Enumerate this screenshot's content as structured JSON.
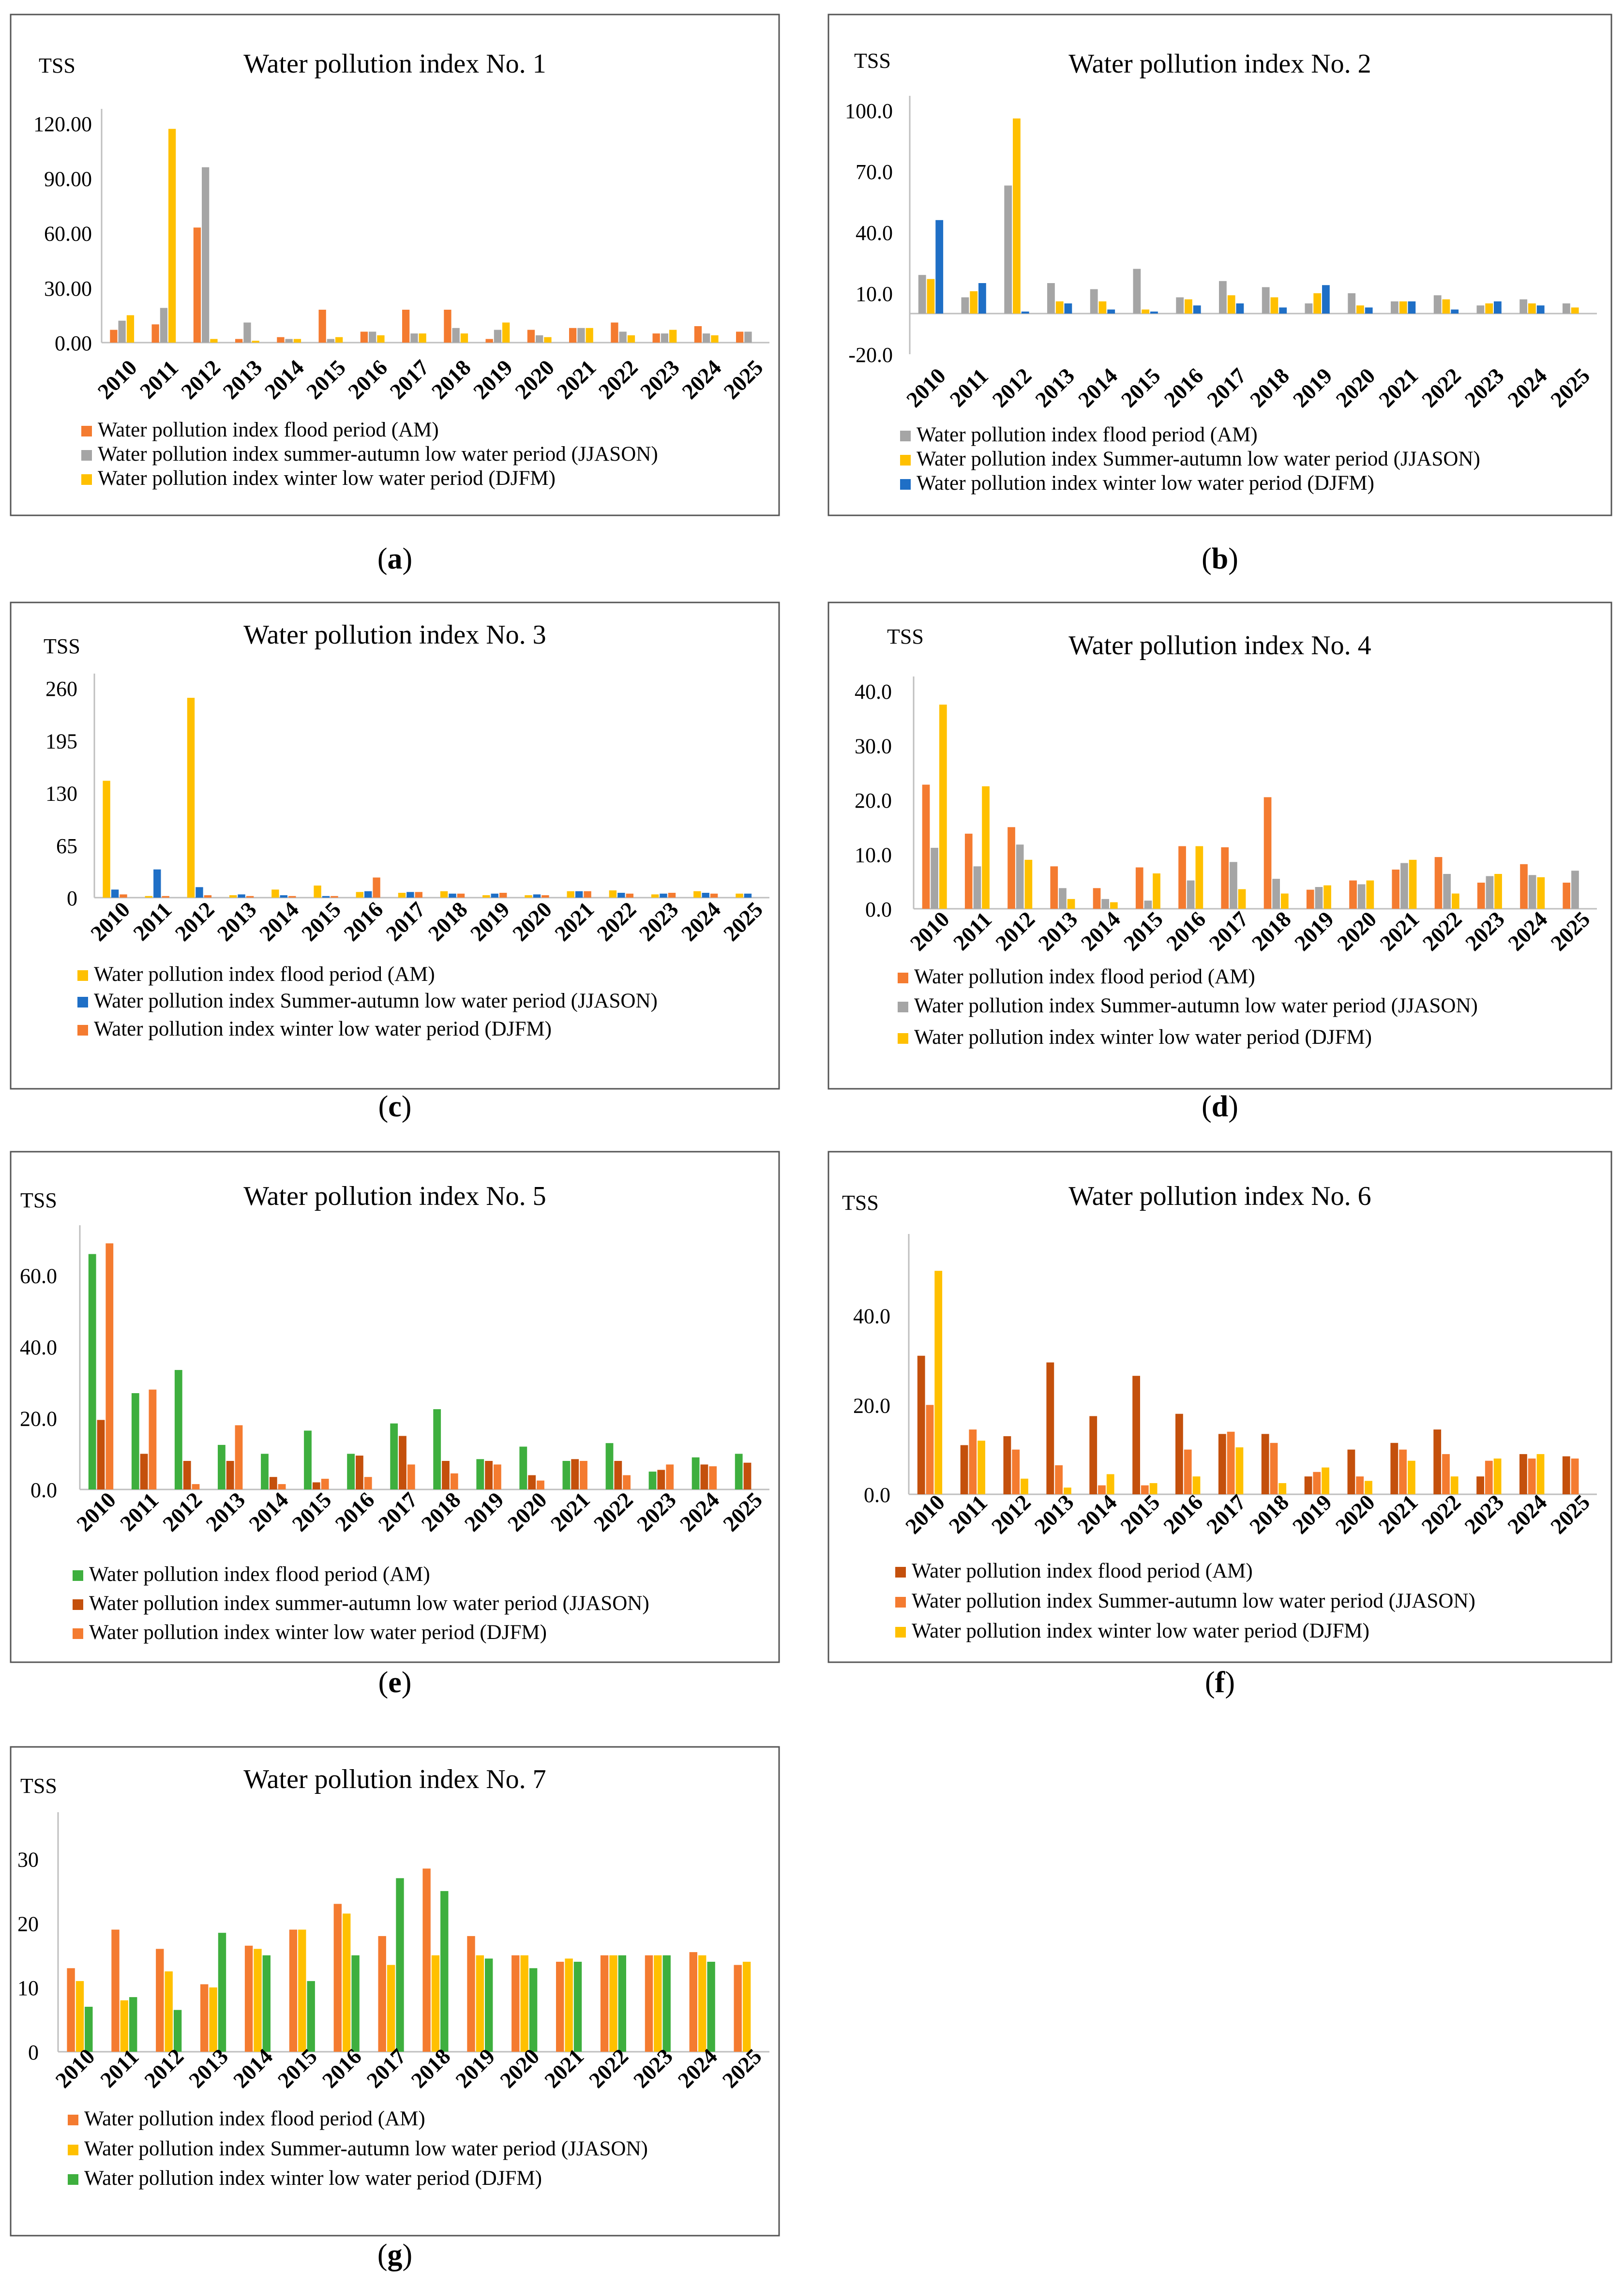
{
  "colors": {
    "orange": "#F47B30",
    "gray": "#A5A5A5",
    "yellow": "#FFC000",
    "blue": "#1F6FC6",
    "green": "#3EAF3E",
    "darkorange": "#C4500C"
  },
  "chart_data": [
    {
      "label": "(a)",
      "type": "bar",
      "title": "Water pollution index No. 1",
      "ylabel": "TSS",
      "ylim": [
        0,
        120
      ],
      "yticks": [
        "0.00",
        "30.00",
        "60.00",
        "90.00",
        "120.00"
      ],
      "categories": [
        "2010",
        "2011",
        "2012",
        "2013",
        "2014",
        "2015",
        "2016",
        "2017",
        "2018",
        "2019",
        "2020",
        "2021",
        "2022",
        "2023",
        "2024",
        "2025"
      ],
      "series": [
        {
          "name": "Water pollution index flood period (AM)",
          "color": "orange",
          "values": [
            7,
            10,
            63,
            2,
            3,
            18,
            6,
            18,
            18,
            2,
            7,
            8,
            11,
            5,
            9,
            6
          ]
        },
        {
          "name": "Water pollution index summer-autumn low water period (JJASON)",
          "color": "gray",
          "values": [
            12,
            19,
            96,
            11,
            2,
            2,
            6,
            5,
            8,
            7,
            4,
            8,
            6,
            5,
            5,
            6
          ]
        },
        {
          "name": "Water pollution index winter low water period (DJFM)",
          "color": "yellow",
          "values": [
            15,
            117,
            2,
            1,
            2,
            3,
            4,
            5,
            5,
            11,
            3,
            8,
            4,
            7,
            4,
            0
          ]
        }
      ]
    },
    {
      "label": "(b)",
      "type": "bar",
      "title": "Water pollution index No. 2",
      "ylabel": "TSS",
      "ylim": [
        -20,
        100
      ],
      "yticks": [
        "-20.0",
        "10.0",
        "40.0",
        "70.0",
        "100.0"
      ],
      "categories": [
        "2010",
        "2011",
        "2012",
        "2013",
        "2014",
        "2015",
        "2016",
        "2017",
        "2018",
        "2019",
        "2020",
        "2021",
        "2022",
        "2023",
        "2024",
        "2025"
      ],
      "series": [
        {
          "name": "Water pollution index flood period (AM)",
          "color": "gray",
          "values": [
            19,
            8,
            63,
            15,
            12,
            22,
            8,
            16,
            13,
            5,
            10,
            6,
            9,
            4,
            7,
            5
          ]
        },
        {
          "name": "Water pollution index Summer-autumn low water period (JJASON)",
          "color": "yellow",
          "values": [
            17,
            11,
            96,
            6,
            6,
            2,
            7,
            9,
            8,
            10,
            4,
            6,
            7,
            5,
            5,
            3
          ]
        },
        {
          "name": "Water pollution index winter low water period (DJFM)",
          "color": "blue",
          "values": [
            46,
            15,
            1,
            5,
            2,
            1,
            4,
            5,
            3,
            14,
            3,
            6,
            2,
            6,
            4,
            0
          ]
        }
      ]
    },
    {
      "label": "(c)",
      "type": "bar",
      "title": "Water pollution index No. 3",
      "ylabel": "TSS",
      "ylim": [
        0,
        260
      ],
      "yticks": [
        "0",
        "65",
        "130",
        "195",
        "260"
      ],
      "categories": [
        "2010",
        "2011",
        "2012",
        "2013",
        "2014",
        "2015",
        "2016",
        "2017",
        "2018",
        "2019",
        "2020",
        "2021",
        "2022",
        "2023",
        "2024",
        "2025"
      ],
      "series": [
        {
          "name": "Water pollution index flood period (AM)",
          "color": "yellow",
          "values": [
            145,
            2,
            248,
            3,
            10,
            15,
            7,
            6,
            8,
            3,
            3,
            8,
            9,
            4,
            8,
            5
          ]
        },
        {
          "name": "Water pollution index Summer-autumn low water period (JJASON)",
          "color": "blue",
          "values": [
            10,
            35,
            13,
            4,
            3,
            2,
            8,
            7,
            5,
            5,
            4,
            8,
            6,
            5,
            6,
            5
          ]
        },
        {
          "name": "Water pollution index winter low water period (DJFM)",
          "color": "orange",
          "values": [
            4,
            2,
            3,
            2,
            2,
            2,
            25,
            7,
            5,
            6,
            3,
            8,
            5,
            6,
            5,
            0
          ]
        }
      ]
    },
    {
      "label": "(d)",
      "type": "bar",
      "title": "Water pollution index No. 4",
      "ylabel": "TSS",
      "ylim": [
        0,
        40
      ],
      "yticks": [
        "0.0",
        "10.0",
        "20.0",
        "30.0",
        "40.0"
      ],
      "categories": [
        "2010",
        "2011",
        "2012",
        "2013",
        "2014",
        "2015",
        "2016",
        "2017",
        "2018",
        "2019",
        "2020",
        "2021",
        "2022",
        "2023",
        "2024",
        "2025"
      ],
      "series": [
        {
          "name": "Water pollution index flood period (AM)",
          "color": "orange",
          "values": [
            22.8,
            13.8,
            15,
            7.8,
            3.8,
            7.6,
            11.5,
            11.3,
            20.5,
            3.5,
            5.2,
            7.2,
            9.5,
            4.8,
            8.2,
            4.8
          ]
        },
        {
          "name": "Water pollution index Summer-autumn low water period (JJASON)",
          "color": "gray",
          "values": [
            11.2,
            7.8,
            11.8,
            3.8,
            1.8,
            1.5,
            5.2,
            8.6,
            5.5,
            4,
            4.5,
            8.4,
            6.4,
            6,
            6.2,
            7
          ]
        },
        {
          "name": "Water pollution index winter low water period (DJFM)",
          "color": "yellow",
          "values": [
            37.5,
            22.5,
            9,
            1.8,
            1.2,
            6.5,
            11.5,
            3.6,
            2.8,
            4.3,
            5.2,
            9,
            2.8,
            6.4,
            5.8,
            0
          ]
        }
      ]
    },
    {
      "label": "(e)",
      "type": "bar",
      "title": "Water pollution index No. 5",
      "ylabel": "TSS",
      "ylim": [
        0,
        70
      ],
      "yticks": [
        "0.0",
        "20.0",
        "40.0",
        "60.0"
      ],
      "categories": [
        "2010",
        "2011",
        "2012",
        "2013",
        "2014",
        "2015",
        "2016",
        "2017",
        "2018",
        "2019",
        "2020",
        "2021",
        "2022",
        "2023",
        "2024",
        "2025"
      ],
      "series": [
        {
          "name": "Water pollution index flood period (AM)",
          "color": "green",
          "values": [
            66,
            27,
            33.5,
            12.5,
            10,
            16.5,
            10,
            18.5,
            22.5,
            8.5,
            12,
            8,
            13,
            5,
            9,
            10
          ]
        },
        {
          "name": "Water pollution index summer-autumn low water period (JJASON)",
          "color": "darkorange",
          "values": [
            19.5,
            10,
            8,
            8,
            3.5,
            2,
            9.5,
            15,
            8,
            8,
            4,
            8.5,
            8,
            5.5,
            7,
            7.5
          ]
        },
        {
          "name": "Water pollution index winter low water period (DJFM)",
          "color": "orange",
          "values": [
            69,
            28,
            1.5,
            18,
            1.5,
            3,
            3.5,
            7,
            4.5,
            7,
            2.5,
            8,
            4,
            7,
            6.5,
            0
          ]
        }
      ]
    },
    {
      "label": "(f)",
      "type": "bar",
      "title": "Water pollution index No. 6",
      "ylabel": "TSS",
      "ylim": [
        0,
        55
      ],
      "yticks": [
        "0.0",
        "20.0",
        "40.0"
      ],
      "categories": [
        "2010",
        "2011",
        "2012",
        "2013",
        "2014",
        "2015",
        "2016",
        "2017",
        "2018",
        "2019",
        "2020",
        "2021",
        "2022",
        "2023",
        "2024",
        "2025"
      ],
      "series": [
        {
          "name": "Water pollution index flood period (AM)",
          "color": "darkorange",
          "values": [
            31,
            11,
            13,
            29.5,
            17.5,
            26.5,
            18,
            13.5,
            13.5,
            4,
            10,
            11.5,
            14.5,
            4,
            9,
            8.5
          ]
        },
        {
          "name": "Water pollution index Summer-autumn low water period (JJASON)",
          "color": "orange",
          "values": [
            20,
            14.5,
            10,
            6.5,
            2,
            2,
            10,
            14,
            11.5,
            5,
            4,
            10,
            9,
            7.5,
            8,
            8
          ]
        },
        {
          "name": "Water pollution index winter low water period (DJFM)",
          "color": "yellow",
          "values": [
            50,
            12,
            3.5,
            1.5,
            4.5,
            2.5,
            4,
            10.5,
            2.5,
            6,
            3,
            7.5,
            4,
            8,
            9,
            0
          ]
        }
      ]
    },
    {
      "label": "(g)",
      "type": "bar",
      "title": "Water pollution index No. 7",
      "ylabel": "TSS",
      "ylim": [
        0,
        35
      ],
      "yticks": [
        "0",
        "10",
        "20",
        "30"
      ],
      "categories": [
        "2010",
        "2011",
        "2012",
        "2013",
        "2014",
        "2015",
        "2016",
        "2017",
        "2018",
        "2019",
        "2020",
        "2021",
        "2022",
        "2023",
        "2024",
        "2025"
      ],
      "series": [
        {
          "name": "Water pollution index flood period (AM)",
          "color": "orange",
          "values": [
            13,
            19,
            16,
            10.5,
            16.5,
            19,
            23,
            18,
            28.5,
            18,
            15,
            14,
            15,
            15,
            15.5,
            13.5
          ]
        },
        {
          "name": "Water pollution index Summer-autumn low water period (JJASON)",
          "color": "yellow",
          "values": [
            11,
            8,
            12.5,
            10,
            16,
            19,
            21.5,
            13.5,
            15,
            15,
            15,
            14.5,
            15,
            15,
            15,
            14
          ]
        },
        {
          "name": "Water pollution index winter low water period (DJFM)",
          "color": "green",
          "values": [
            7,
            8.5,
            6.5,
            18.5,
            15,
            11,
            15,
            27,
            25,
            14.5,
            13,
            14,
            15,
            15,
            14,
            0
          ]
        }
      ]
    }
  ]
}
